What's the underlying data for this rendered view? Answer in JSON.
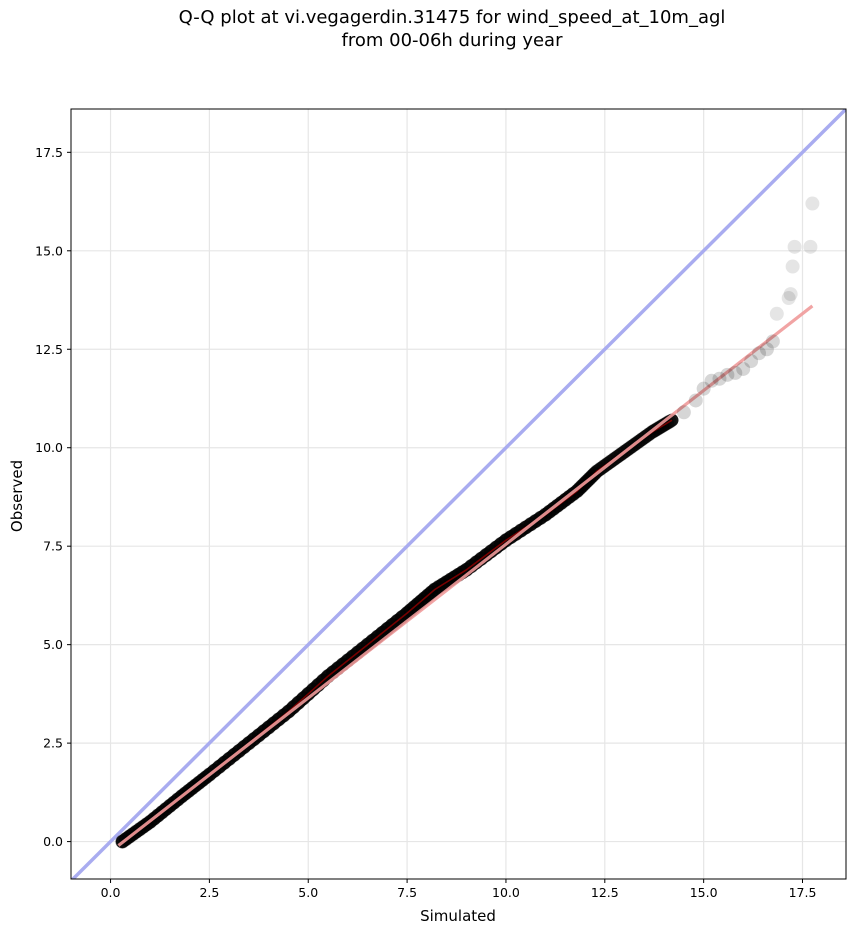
{
  "chart_data": {
    "type": "scatter",
    "title": "Q-Q plot at vi.vegagerdin.31475 for wind_speed_at_10m_agl",
    "subtitle": "from 00-06h during year",
    "xlabel": "Simulated",
    "ylabel": "Observed",
    "xlim": [
      -1.0,
      18.6
    ],
    "ylim": [
      -0.95,
      18.6
    ],
    "xticks": [
      "0.0",
      "2.5",
      "5.0",
      "7.5",
      "10.0",
      "12.5",
      "15.0",
      "17.5"
    ],
    "yticks": [
      "0.0",
      "2.5",
      "5.0",
      "7.5",
      "10.0",
      "12.5",
      "15.0",
      "17.5"
    ],
    "grid": true,
    "colors": {
      "points": "#000000",
      "identity_line": "#a9acf0",
      "fit_line": "#f09a9a",
      "dense_core": "#8b0000"
    },
    "identity_line": {
      "x": [
        -1.0,
        18.6
      ],
      "y": [
        -1.0,
        18.6
      ]
    },
    "fit_line": {
      "x": [
        0.2,
        17.75
      ],
      "y": [
        -0.1,
        13.6
      ]
    },
    "dense_curve": {
      "x": [
        0.3,
        1.0,
        1.8,
        2.5,
        3.5,
        4.5,
        5.5,
        6.5,
        7.5,
        8.2,
        9.0,
        10.0,
        11.0,
        11.8,
        12.3,
        13.0,
        13.7,
        14.2
      ],
      "y": [
        0.0,
        0.5,
        1.15,
        1.7,
        2.5,
        3.3,
        4.2,
        5.0,
        5.8,
        6.4,
        6.9,
        7.65,
        8.3,
        8.9,
        9.4,
        9.9,
        10.4,
        10.7
      ]
    },
    "series": [
      {
        "x": [
          14.5,
          14.8,
          15.0,
          15.2,
          15.4,
          15.6,
          15.8,
          16.0,
          16.2,
          16.4,
          16.6,
          16.75,
          16.85,
          17.15,
          17.2,
          17.25,
          17.3,
          17.7,
          17.75
        ],
        "y": [
          10.9,
          11.2,
          11.5,
          11.7,
          11.75,
          11.85,
          11.9,
          12.0,
          12.2,
          12.4,
          12.5,
          12.7,
          13.4,
          13.8,
          13.9,
          14.6,
          15.1,
          15.1,
          16.2
        ]
      }
    ]
  }
}
